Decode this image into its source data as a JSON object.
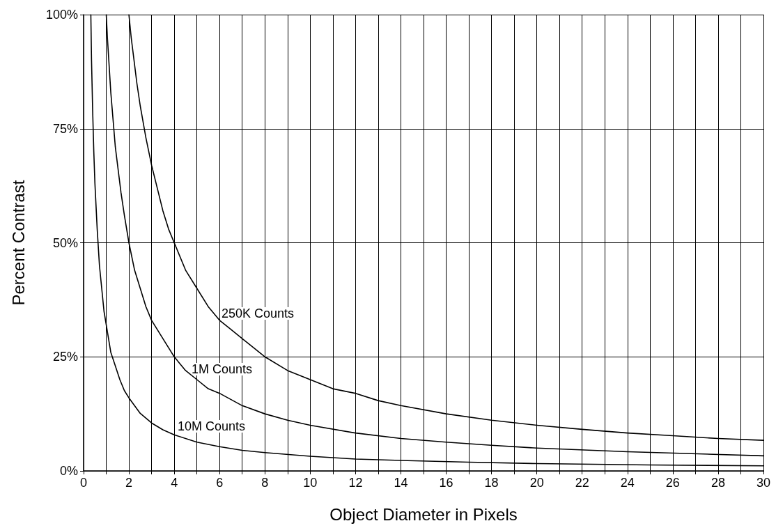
{
  "chart_data": {
    "type": "line",
    "xlabel": "Object Diameter in Pixels",
    "ylabel": "Percent Contrast",
    "xlim": [
      0,
      30
    ],
    "xticks": [
      0,
      {
        "value": 1,
        "label": null
      },
      2,
      {
        "value": 3,
        "label": null
      },
      4,
      {
        "value": 5,
        "label": null
      },
      6,
      {
        "value": 7,
        "label": null
      },
      8,
      {
        "value": 9,
        "label": null
      },
      10,
      {
        "value": 11,
        "label": null
      },
      12,
      {
        "value": 13,
        "label": null
      },
      14,
      {
        "value": 15,
        "label": null
      },
      16,
      {
        "value": 17,
        "label": null
      },
      18,
      {
        "value": 19,
        "label": null
      },
      20,
      {
        "value": 21,
        "label": null
      },
      22,
      {
        "value": 23,
        "label": null
      },
      24,
      {
        "value": 25,
        "label": null
      },
      26,
      {
        "value": 27,
        "label": null
      },
      28,
      {
        "value": 29,
        "label": null
      },
      30
    ],
    "ylim": [
      0,
      100
    ],
    "yticks": [
      {
        "value": 0,
        "label": "0%"
      },
      {
        "value": 25,
        "label": "25%"
      },
      {
        "value": 50,
        "label": "50%"
      },
      {
        "value": 75,
        "label": "75%"
      },
      {
        "value": 100,
        "label": "100%"
      }
    ],
    "grid": true,
    "marker": "none",
    "line_style": "solid",
    "series": [
      {
        "color": "#000000",
        "x": [
          2,
          2.1,
          2.2,
          2.35,
          2.5,
          2.75,
          3,
          3.25,
          3.5,
          3.75,
          4,
          4.5,
          5,
          5.5,
          6,
          6.5,
          7,
          7.5,
          8,
          9,
          10,
          11,
          12,
          13,
          14,
          16,
          18,
          20,
          22,
          24,
          26,
          28,
          30
        ],
        "values": [
          100,
          95,
          91,
          85,
          80,
          73,
          67,
          62,
          57,
          53,
          50,
          44,
          40,
          36,
          33,
          31,
          29,
          27,
          25,
          22,
          20,
          18,
          17,
          15.4,
          14.3,
          12.5,
          11.1,
          10,
          9.1,
          8.3,
          7.7,
          7.1,
          6.7
        ]
      },
      {
        "color": "#000000",
        "x": [
          1,
          1.05,
          1.1,
          1.2,
          1.3,
          1.4,
          1.5,
          1.65,
          1.8,
          2,
          2.25,
          2.5,
          2.75,
          3,
          3.5,
          4,
          4.5,
          5,
          5.5,
          6,
          7,
          8,
          9,
          10,
          12,
          14,
          16,
          18,
          20,
          24,
          30
        ],
        "values": [
          100,
          95,
          91,
          83,
          77,
          71,
          67,
          61,
          56,
          50,
          44,
          40,
          36,
          33,
          29,
          25,
          22,
          20,
          18,
          17,
          14.3,
          12.5,
          11.1,
          10,
          8.3,
          7.1,
          6.3,
          5.6,
          5,
          4.2,
          3.3
        ]
      },
      {
        "color": "#000000",
        "x": [
          0.32,
          0.35,
          0.4,
          0.45,
          0.5,
          0.6,
          0.7,
          0.8,
          0.9,
          1,
          1.2,
          1.4,
          1.6,
          1.8,
          2,
          2.5,
          3,
          3.5,
          4,
          5,
          6,
          7,
          8,
          10,
          12,
          14,
          17,
          20,
          25,
          30
        ],
        "values": [
          100,
          90,
          79,
          70,
          63,
          53,
          45,
          40,
          35,
          32,
          26,
          23,
          20,
          17.6,
          16,
          12.6,
          10.5,
          9,
          7.9,
          6.3,
          5.3,
          4.5,
          4,
          3.2,
          2.6,
          2.3,
          1.9,
          1.6,
          1.3,
          1.1
        ]
      }
    ],
    "annotations": [
      "250K Counts",
      "1M Counts",
      "10M Counts"
    ]
  }
}
